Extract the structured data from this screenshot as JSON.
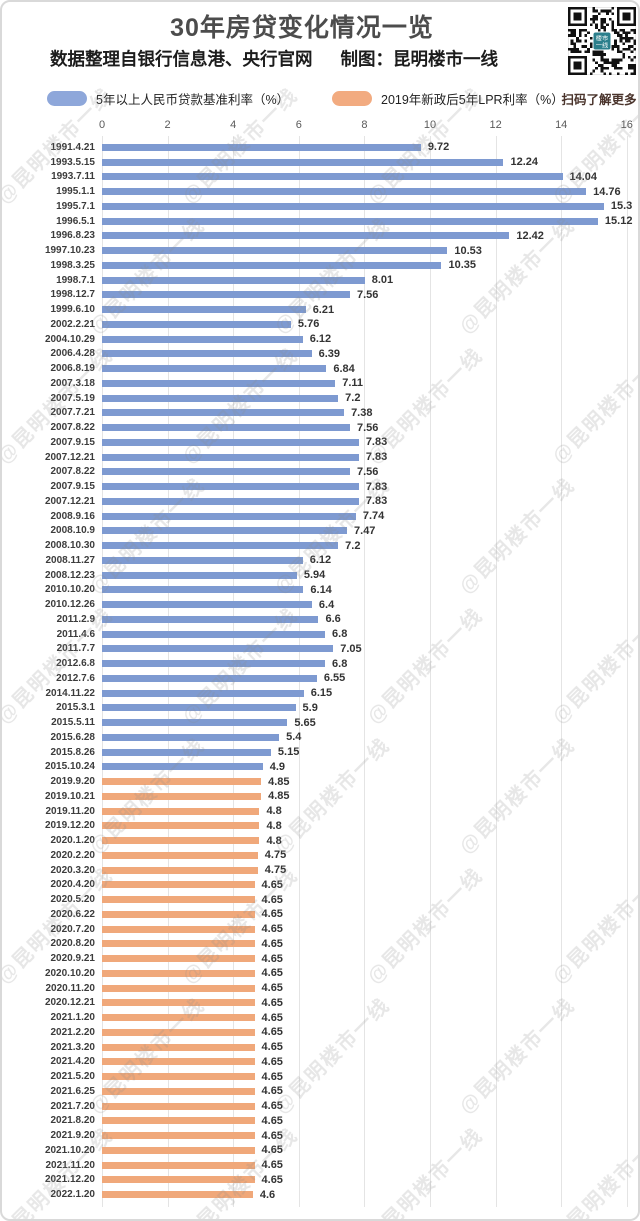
{
  "header": {
    "title": "30年房贷变化情况一览",
    "source": "数据整理自银行信息港、央行官网",
    "maker": "制图：昆明楼市一线",
    "qr_caption": "扫码了解更多",
    "qr_logo_text": "楼市一线"
  },
  "legend": [
    {
      "label": "5年以上人民币贷款基准利率（%）",
      "color": "#8ea7da"
    },
    {
      "label": "2019年新政后5年LPR利率（%）",
      "color": "#f2ab80"
    }
  ],
  "watermark": {
    "text": "@昆明楼市一线"
  },
  "colors": {
    "base_rate_bar": "#7e9ad1",
    "lpr_bar": "#f0a87a",
    "qr_logo_bg": "#2b7f8c"
  },
  "chart_data": {
    "type": "bar",
    "orientation": "horizontal",
    "title": "30年房贷变化情况一览",
    "xlabel": "",
    "ylabel": "",
    "xlim": [
      0,
      16
    ],
    "x_ticks": [
      0,
      2,
      4,
      6,
      8,
      10,
      12,
      14,
      16
    ],
    "grid": true,
    "value_labels": true,
    "legend_position": "top",
    "series": [
      {
        "name": "5年以上人民币贷款基准利率（%）",
        "color": "#7e9ad1",
        "points": [
          [
            "1991.4.21",
            9.72
          ],
          [
            "1993.5.15",
            12.24
          ],
          [
            "1993.7.11",
            14.04
          ],
          [
            "1995.1.1",
            14.76
          ],
          [
            "1995.7.1",
            15.3
          ],
          [
            "1996.5.1",
            15.12
          ],
          [
            "1996.8.23",
            12.42
          ],
          [
            "1997.10.23",
            10.53
          ],
          [
            "1998.3.25",
            10.35
          ],
          [
            "1998.7.1",
            8.01
          ],
          [
            "1998.12.7",
            7.56
          ],
          [
            "1999.6.10",
            6.21
          ],
          [
            "2002.2.21",
            5.76
          ],
          [
            "2004.10.29",
            6.12
          ],
          [
            "2006.4.28",
            6.39
          ],
          [
            "2006.8.19",
            6.84
          ],
          [
            "2007.3.18",
            7.11
          ],
          [
            "2007.5.19",
            7.2
          ],
          [
            "2007.7.21",
            7.38
          ],
          [
            "2007.8.22",
            7.56
          ],
          [
            "2007.9.15",
            7.83
          ],
          [
            "2007.12.21",
            7.83
          ],
          [
            "2007.8.22",
            7.56
          ],
          [
            "2007.9.15",
            7.83
          ],
          [
            "2007.12.21",
            7.83
          ],
          [
            "2008.9.16",
            7.74
          ],
          [
            "2008.10.9",
            7.47
          ],
          [
            "2008.10.30",
            7.2
          ],
          [
            "2008.11.27",
            6.12
          ],
          [
            "2008.12.23",
            5.94
          ],
          [
            "2010.10.20",
            6.14
          ],
          [
            "2010.12.26",
            6.4
          ],
          [
            "2011.2.9",
            6.6
          ],
          [
            "2011.4.6",
            6.8
          ],
          [
            "2011.7.7",
            7.05
          ],
          [
            "2012.6.8",
            6.8
          ],
          [
            "2012.7.6",
            6.55
          ],
          [
            "2014.11.22",
            6.15
          ],
          [
            "2015.3.1",
            5.9
          ],
          [
            "2015.5.11",
            5.65
          ],
          [
            "2015.6.28",
            5.4
          ],
          [
            "2015.8.26",
            5.15
          ],
          [
            "2015.10.24",
            4.9
          ]
        ]
      },
      {
        "name": "2019年新政后5年LPR利率（%）",
        "color": "#f0a87a",
        "points": [
          [
            "2019.9.20",
            4.85
          ],
          [
            "2019.10.21",
            4.85
          ],
          [
            "2019.11.20",
            4.8
          ],
          [
            "2019.12.20",
            4.8
          ],
          [
            "2020.1.20",
            4.8
          ],
          [
            "2020.2.20",
            4.75
          ],
          [
            "2020.3.20",
            4.75
          ],
          [
            "2020.4.20",
            4.65
          ],
          [
            "2020.5.20",
            4.65
          ],
          [
            "2020.6.22",
            4.65
          ],
          [
            "2020.7.20",
            4.65
          ],
          [
            "2020.8.20",
            4.65
          ],
          [
            "2020.9.21",
            4.65
          ],
          [
            "2020.10.20",
            4.65
          ],
          [
            "2020.11.20",
            4.65
          ],
          [
            "2020.12.21",
            4.65
          ],
          [
            "2021.1.20",
            4.65
          ],
          [
            "2021.2.20",
            4.65
          ],
          [
            "2021.3.20",
            4.65
          ],
          [
            "2021.4.20",
            4.65
          ],
          [
            "2021.5.20",
            4.65
          ],
          [
            "2021.6.25",
            4.65
          ],
          [
            "2021.7.20",
            4.65
          ],
          [
            "2021.8.20",
            4.65
          ],
          [
            "2021.9.20",
            4.65
          ],
          [
            "2021.10.20",
            4.65
          ],
          [
            "2021.11.20",
            4.65
          ],
          [
            "2021.12.20",
            4.65
          ],
          [
            "2022.1.20",
            4.6
          ]
        ]
      }
    ]
  }
}
